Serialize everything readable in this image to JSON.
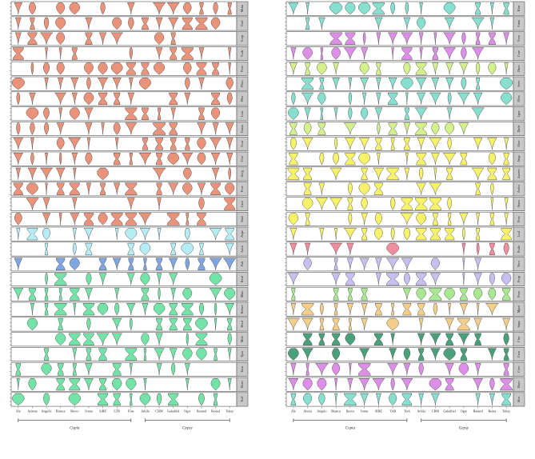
{
  "chart_data": [
    {
      "type": "violin",
      "panel": "left",
      "categories": [
        "Ale",
        "Atlanta",
        "Angelic",
        "Bianca",
        "Brevo",
        "Ivana",
        "SiRE",
        "LTR",
        "Fine",
        "Athila",
        "CRM",
        "Galadriel",
        "Ogre",
        "Retand",
        "Reinal",
        "Tekay"
      ],
      "facets": [
        "Mutu",
        "Trad",
        "Vcep",
        "Vcab",
        "Pcoc",
        "Pbco",
        "Ptha",
        "Lcar",
        "Gmax",
        "Grai",
        "Cfur",
        "Acfg",
        "Pcoc",
        "Csce",
        "Stuh",
        "Aspe",
        "Ancu",
        "Patt",
        "Bvul",
        "Msin",
        "Relarc",
        "Hvul",
        "Mdo",
        "Tpra",
        "Tacu",
        "Bcen",
        "Tcel"
      ],
      "series_colors": {
        "group1": "#e8937a",
        "group2": "#b6ecf3",
        "group3": "#7fa6e0",
        "group4": "#74e3a8"
      },
      "facet_color_groups": [
        "group1",
        "group1",
        "group1",
        "group1",
        "group1",
        "group1",
        "group1",
        "group1",
        "group1",
        "group1",
        "group1",
        "group1",
        "group1",
        "group1",
        "group1",
        "group2",
        "group2",
        "group3",
        "group4",
        "group4",
        "group4",
        "group4",
        "group4",
        "group4",
        "group4",
        "group4",
        "group4"
      ],
      "brackets": [
        {
          "label": "Copia",
          "from": "Ale",
          "to": "Fine"
        },
        {
          "label": "Gypsy",
          "from": "Athila",
          "to": "Tekay"
        }
      ]
    },
    {
      "type": "violin",
      "panel": "right",
      "categories": [
        "Ale",
        "Alesia",
        "Angelo",
        "Bianca",
        "Ikeros",
        "Ivana",
        "SIRE",
        "TAR",
        "Tork",
        "Athila",
        "CRM",
        "Galadriel",
        "Ogre",
        "Retand",
        "Reina",
        "Tekay"
      ],
      "facets": [
        "Kfm",
        "Fmat",
        "Vcen",
        "Core",
        "Dsco",
        "Sroo",
        "Ohrs",
        "Lpur",
        "Dadz",
        "Aher",
        "Atup",
        "Aacem",
        "Aofm",
        "Atam",
        "Pcoc",
        "Lcal",
        "Pcale",
        "Tecn",
        "Pcap",
        "Pcan",
        "Mpoi",
        "Sepa",
        "Cfur",
        "Ceru",
        "Cver",
        "Bsco",
        "Sfce"
      ],
      "series_colors": {
        "purple": "#dd8ee6",
        "green": "#d3f08a",
        "teal": "#86dfcf",
        "yellow": "#f7f26a",
        "pink": "#ef8e9e",
        "lavender": "#c7bff0",
        "lightgreen": "#a9e890",
        "orange": "#f4cf8a",
        "darkgreen": "#4aa07a"
      },
      "facet_color_groups": [
        "teal",
        "teal",
        "purple",
        "purple",
        "green",
        "teal",
        "teal",
        "teal",
        "green",
        "yellow",
        "yellow",
        "yellow",
        "yellow",
        "yellow",
        "yellow",
        "yellow",
        "pink",
        "lavender",
        "lavender",
        "lightgreen",
        "orange",
        "orange",
        "darkgreen",
        "darkgreen",
        "purple",
        "purple",
        "teal"
      ],
      "brackets": [
        {
          "label": "Copia",
          "from": "Ale",
          "to": "Tork"
        },
        {
          "label": "Gypsy",
          "from": "Athila",
          "to": "Tekay"
        }
      ]
    }
  ]
}
